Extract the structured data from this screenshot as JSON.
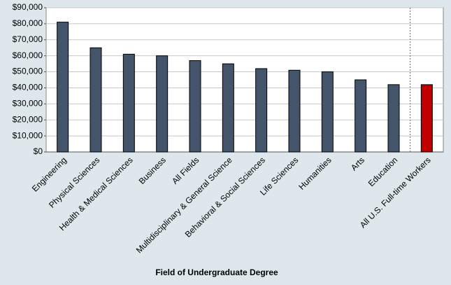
{
  "chart_data": {
    "type": "bar",
    "x_label": "Field of Undergraduate Degree",
    "categories": [
      "Engineering",
      "Physical Sciences",
      "Health & Medical Sciences",
      "Business",
      "All Fields",
      "Multidisciplinary & General Science",
      "Behavioral & Social Sciences",
      "Life Sciences",
      "Humanities",
      "Arts",
      "Education",
      "All U.S. Full-time Workers"
    ],
    "values": [
      81000,
      65000,
      61000,
      60000,
      57000,
      55000,
      52000,
      51000,
      50000,
      45000,
      42000,
      42000
    ],
    "colors": [
      "#44546a",
      "#44546a",
      "#44546a",
      "#44546a",
      "#44546a",
      "#44546a",
      "#44546a",
      "#44546a",
      "#44546a",
      "#44546a",
      "#44546a",
      "#c00000"
    ],
    "ylim": [
      0,
      90000
    ],
    "yticks": [
      {
        "value": 0,
        "label": "$0"
      },
      {
        "value": 10000,
        "label": "$10,000"
      },
      {
        "value": 20000,
        "label": "$20,000"
      },
      {
        "value": 30000,
        "label": "$30,000"
      },
      {
        "value": 40000,
        "label": "$40,000"
      },
      {
        "value": 50000,
        "label": "$50,000"
      },
      {
        "value": 60000,
        "label": "$60,000"
      },
      {
        "value": 70000,
        "label": "$70,000"
      },
      {
        "value": 80000,
        "label": "$80,000"
      },
      {
        "value": 90000,
        "label": "$90,000"
      }
    ],
    "grid": true
  }
}
